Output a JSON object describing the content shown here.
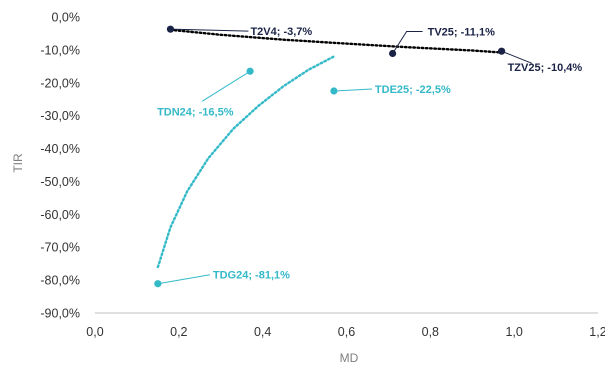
{
  "chart_data": {
    "type": "scatter",
    "xlabel": "MD",
    "ylabel": "TIR",
    "xlim": [
      0,
      1.2
    ],
    "ylim": [
      -90,
      0
    ],
    "x_ticks": [
      0,
      0.2,
      0.4,
      0.6,
      0.8,
      1.0,
      1.2
    ],
    "x_tick_labels": [
      "0,0",
      "0,2",
      "0,4",
      "0,6",
      "0,8",
      "1,0",
      "1,2"
    ],
    "y_ticks": [
      0,
      -10,
      -20,
      -30,
      -40,
      -50,
      -60,
      -70,
      -80,
      -90
    ],
    "y_tick_labels": [
      "0,0%",
      "-10,0%",
      "-20,0%",
      "-30,0%",
      "-40,0%",
      "-50,0%",
      "-60,0%",
      "-70,0%",
      "-80,0%",
      "-90,0%"
    ],
    "grid": false,
    "legend": "none",
    "colors": {
      "dark": "#1a2346",
      "teal": "#34b9c8",
      "axis": "#bfbfbf",
      "trend_dark": "#000000"
    },
    "points": [
      {
        "label": "T2V4; -3,7%",
        "x": 0.18,
        "y": -3.7,
        "group": "dark"
      },
      {
        "label": "TV25; -11,1%",
        "x": 0.71,
        "y": -11.1,
        "group": "dark"
      },
      {
        "label": "TZV25; -10,4%",
        "x": 0.97,
        "y": -10.4,
        "group": "dark"
      },
      {
        "label": "TDN24; -16,5%",
        "x": 0.37,
        "y": -16.5,
        "group": "teal"
      },
      {
        "label": "TDE25; -22,5%",
        "x": 0.57,
        "y": -22.5,
        "group": "teal"
      },
      {
        "label": "TDG24; -81,1%",
        "x": 0.15,
        "y": -81.1,
        "group": "teal"
      }
    ],
    "trendlines": [
      {
        "group": "dark",
        "x": [
          0.18,
          0.3,
          0.45,
          0.6,
          0.75,
          0.9,
          0.97
        ],
        "y": [
          -3.9,
          -5.4,
          -6.9,
          -8.1,
          -9.2,
          -10.2,
          -10.8
        ]
      },
      {
        "group": "teal",
        "x": [
          0.15,
          0.18,
          0.22,
          0.27,
          0.33,
          0.39,
          0.45,
          0.51,
          0.57
        ],
        "y": [
          -76,
          -64,
          -53,
          -43,
          -34,
          -27,
          -21,
          -16,
          -12
        ]
      }
    ]
  }
}
